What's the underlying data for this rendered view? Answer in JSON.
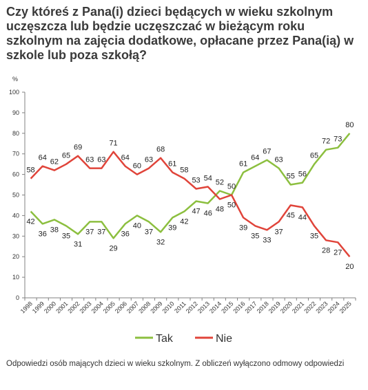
{
  "title": "Czy któreś z Pana(i) dzieci będących w wieku szkolnym uczęszcza lub będzie uczęszczać w bieżącym roku szkolnym na zajęcia dodatkowe, opłacane przez Pana(ią) w szkole lub poza szkołą?",
  "unit": "%",
  "footnote": "Odpowiedzi osób mających dzieci w wieku szkolnym. Z obliczeń wyłączono odmowy odpowiedzi",
  "colors": {
    "tak": "#8cbf3f",
    "nie": "#e0443a",
    "axis": "#808080",
    "text": "#222222"
  },
  "chart_data": {
    "type": "line",
    "x": [
      "1998",
      "1999",
      "2000",
      "2001",
      "2002",
      "2003",
      "2004",
      "2005",
      "2006",
      "2007",
      "2008",
      "2009",
      "2010",
      "2011",
      "2012",
      "2013",
      "2014",
      "2015",
      "2016",
      "2017",
      "2018",
      "2019",
      "2020",
      "2021",
      "2022",
      "2023",
      "2024",
      "2025"
    ],
    "ylim": [
      0,
      100
    ],
    "yticks": [
      "0",
      "10",
      "20",
      "30",
      "40",
      "50",
      "60",
      "70",
      "80",
      "90",
      "100"
    ],
    "series": [
      {
        "name": "Tak",
        "color": "#8cbf3f",
        "values": [
          42,
          36,
          38,
          35,
          31,
          37,
          37,
          29,
          36,
          40,
          37,
          32,
          39,
          42,
          47,
          46,
          52,
          50,
          61,
          64,
          67,
          63,
          55,
          56,
          65,
          72,
          73,
          80
        ]
      },
      {
        "name": "Nie",
        "color": "#e0443a",
        "values": [
          58,
          64,
          62,
          65,
          69,
          63,
          63,
          71,
          64,
          60,
          63,
          68,
          61,
          58,
          53,
          54,
          48,
          50,
          39,
          35,
          33,
          37,
          45,
          44,
          35,
          28,
          27,
          20
        ]
      }
    ],
    "legend_position": "bottom"
  }
}
